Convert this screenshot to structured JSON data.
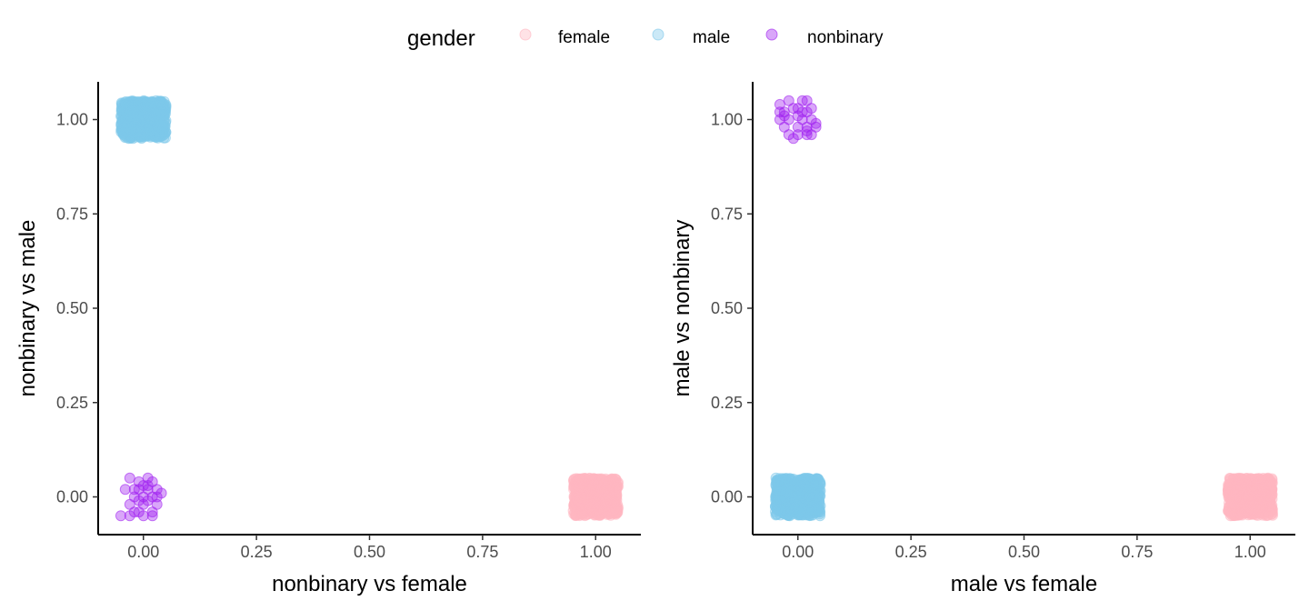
{
  "legend": {
    "title": "gender",
    "placement": "top",
    "entries": [
      {
        "label": "female",
        "color": "#FFB6C1"
      },
      {
        "label": "male",
        "color": "#7EC8EA"
      },
      {
        "label": "nonbinary",
        "color": "#A020F0"
      }
    ]
  },
  "chart_data": [
    {
      "type": "scatter",
      "xlabel": "nonbinary vs female",
      "ylabel": "nonbinary vs male",
      "xlim": [
        -0.1,
        1.1
      ],
      "ylim": [
        -0.1,
        1.1
      ],
      "xticks": [
        "0.00",
        "0.25",
        "0.50",
        "0.75",
        "1.00"
      ],
      "yticks": [
        "0.00",
        "0.25",
        "0.50",
        "0.75",
        "1.00"
      ],
      "grid": false,
      "point_alpha": 0.4,
      "series": [
        {
          "name": "female",
          "color": "#FFB6C1",
          "approx_count": 600,
          "jitter": 0.05,
          "points": [
            [
              1.0,
              0.0
            ]
          ]
        },
        {
          "name": "male",
          "color": "#7EC8EA",
          "approx_count": 600,
          "jitter": 0.05,
          "points": [
            [
              0.0,
              1.0
            ]
          ]
        },
        {
          "name": "nonbinary",
          "color": "#A020F0",
          "points": [
            [
              -0.03,
              0.05
            ],
            [
              -0.01,
              0.04
            ],
            [
              0.02,
              0.04
            ],
            [
              0.01,
              0.05
            ],
            [
              -0.02,
              0.02
            ],
            [
              0.0,
              0.03
            ],
            [
              0.01,
              0.03
            ],
            [
              -0.04,
              0.02
            ],
            [
              0.03,
              0.02
            ],
            [
              0.04,
              0.01
            ],
            [
              -0.02,
              0.0
            ],
            [
              0.0,
              0.0
            ],
            [
              0.01,
              -0.01
            ],
            [
              -0.01,
              -0.01
            ],
            [
              0.03,
              0.0
            ],
            [
              0.02,
              0.0
            ],
            [
              -0.03,
              -0.02
            ],
            [
              0.0,
              -0.02
            ],
            [
              0.03,
              -0.02
            ],
            [
              -0.01,
              -0.04
            ],
            [
              0.02,
              -0.04
            ],
            [
              -0.05,
              -0.05
            ],
            [
              -0.03,
              -0.05
            ],
            [
              0.0,
              -0.05
            ],
            [
              -0.02,
              -0.04
            ],
            [
              0.01,
              0.02
            ],
            [
              -0.01,
              0.02
            ],
            [
              0.02,
              -0.05
            ]
          ]
        }
      ]
    },
    {
      "type": "scatter",
      "xlabel": "male vs female",
      "ylabel": "male vs nonbinary",
      "xlim": [
        -0.1,
        1.1
      ],
      "ylim": [
        -0.1,
        1.1
      ],
      "xticks": [
        "0.00",
        "0.25",
        "0.50",
        "0.75",
        "1.00"
      ],
      "yticks": [
        "0.00",
        "0.25",
        "0.50",
        "0.75",
        "1.00"
      ],
      "grid": false,
      "point_alpha": 0.4,
      "series": [
        {
          "name": "female",
          "color": "#FFB6C1",
          "approx_count": 600,
          "jitter": 0.05,
          "points": [
            [
              1.0,
              0.0
            ]
          ]
        },
        {
          "name": "male",
          "color": "#7EC8EA",
          "approx_count": 600,
          "jitter": 0.05,
          "points": [
            [
              0.0,
              0.0
            ]
          ]
        },
        {
          "name": "nonbinary",
          "color": "#A020F0",
          "points": [
            [
              -0.04,
              1.04
            ],
            [
              -0.02,
              1.05
            ],
            [
              0.01,
              1.05
            ],
            [
              0.02,
              1.05
            ],
            [
              -0.03,
              1.02
            ],
            [
              -0.01,
              1.03
            ],
            [
              0.0,
              1.03
            ],
            [
              0.02,
              1.02
            ],
            [
              -0.04,
              1.0
            ],
            [
              -0.02,
              1.0
            ],
            [
              0.0,
              1.01
            ],
            [
              0.01,
              1.0
            ],
            [
              0.03,
              1.0
            ],
            [
              -0.03,
              0.98
            ],
            [
              0.0,
              0.98
            ],
            [
              0.02,
              0.98
            ],
            [
              0.04,
              0.99
            ],
            [
              -0.02,
              0.96
            ],
            [
              0.0,
              0.96
            ],
            [
              0.02,
              0.96
            ],
            [
              0.03,
              0.96
            ],
            [
              -0.01,
              0.95
            ],
            [
              0.04,
              0.98
            ],
            [
              0.03,
              1.03
            ],
            [
              -0.03,
              1.01
            ],
            [
              0.01,
              1.02
            ],
            [
              0.02,
              0.97
            ],
            [
              -0.04,
              1.02
            ]
          ]
        }
      ]
    }
  ]
}
